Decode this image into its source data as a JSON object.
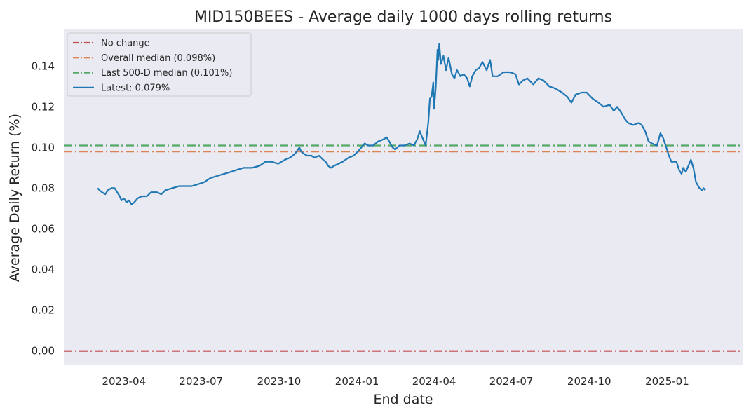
{
  "chart_data": {
    "type": "line",
    "title": "MID150BEES - Average daily 1000 days rolling returns",
    "xlabel": "End date",
    "ylabel": "Average Daily Return (%)",
    "x_ticks": [
      "2023-04",
      "2023-07",
      "2023-10",
      "2024-01",
      "2024-04",
      "2024-07",
      "2024-10",
      "2025-01"
    ],
    "y_ticks": [
      "0.00",
      "0.02",
      "0.04",
      "0.06",
      "0.08",
      "0.10",
      "0.12",
      "0.14"
    ],
    "xlim": [
      "2023-01-20",
      "2025-03-31"
    ],
    "ylim": [
      -0.007,
      0.158
    ],
    "grid": false,
    "legend_position": "top-left",
    "background": "#eaeaf2",
    "reference_lines": [
      {
        "name": "No change",
        "value": 0.0,
        "color": "#c44e52",
        "style": "dashdot"
      },
      {
        "name": "Overall median (0.098%)",
        "value": 0.098,
        "color": "#dd8452",
        "style": "dashdot"
      },
      {
        "name": "Last 500-D median (0.101%)",
        "value": 0.101,
        "color": "#55a868",
        "style": "dashdot"
      }
    ],
    "series": [
      {
        "name": "Latest: 0.079%",
        "color": "#1f77b4",
        "points": [
          [
            "2023-03-01",
            0.08
          ],
          [
            "2023-03-03",
            0.079
          ],
          [
            "2023-03-06",
            0.078
          ],
          [
            "2023-03-10",
            0.077
          ],
          [
            "2023-03-13",
            0.079
          ],
          [
            "2023-03-17",
            0.08
          ],
          [
            "2023-03-21",
            0.08
          ],
          [
            "2023-03-24",
            0.078
          ],
          [
            "2023-03-27",
            0.076
          ],
          [
            "2023-03-29",
            0.074
          ],
          [
            "2023-04-01",
            0.075
          ],
          [
            "2023-04-04",
            0.073
          ],
          [
            "2023-04-07",
            0.074
          ],
          [
            "2023-04-10",
            0.072
          ],
          [
            "2023-04-13",
            0.073
          ],
          [
            "2023-04-17",
            0.075
          ],
          [
            "2023-04-22",
            0.076
          ],
          [
            "2023-04-28",
            0.076
          ],
          [
            "2023-05-03",
            0.078
          ],
          [
            "2023-05-10",
            0.078
          ],
          [
            "2023-05-15",
            0.077
          ],
          [
            "2023-05-20",
            0.079
          ],
          [
            "2023-05-28",
            0.08
          ],
          [
            "2023-06-05",
            0.081
          ],
          [
            "2023-06-12",
            0.081
          ],
          [
            "2023-06-20",
            0.081
          ],
          [
            "2023-06-28",
            0.082
          ],
          [
            "2023-07-05",
            0.083
          ],
          [
            "2023-07-12",
            0.085
          ],
          [
            "2023-07-20",
            0.086
          ],
          [
            "2023-07-28",
            0.087
          ],
          [
            "2023-08-05",
            0.088
          ],
          [
            "2023-08-12",
            0.089
          ],
          [
            "2023-08-20",
            0.09
          ],
          [
            "2023-08-30",
            0.09
          ],
          [
            "2023-09-08",
            0.091
          ],
          [
            "2023-09-15",
            0.093
          ],
          [
            "2023-09-22",
            0.093
          ],
          [
            "2023-09-30",
            0.092
          ],
          [
            "2023-10-08",
            0.094
          ],
          [
            "2023-10-14",
            0.095
          ],
          [
            "2023-10-20",
            0.097
          ],
          [
            "2023-10-25",
            0.1
          ],
          [
            "2023-10-27",
            0.098
          ],
          [
            "2023-10-30",
            0.097
          ],
          [
            "2023-11-03",
            0.096
          ],
          [
            "2023-11-08",
            0.096
          ],
          [
            "2023-11-12",
            0.095
          ],
          [
            "2023-11-17",
            0.096
          ],
          [
            "2023-11-22",
            0.094
          ],
          [
            "2023-11-25",
            0.093
          ],
          [
            "2023-11-28",
            0.091
          ],
          [
            "2023-12-01",
            0.09
          ],
          [
            "2023-12-05",
            0.091
          ],
          [
            "2023-12-10",
            0.092
          ],
          [
            "2023-12-15",
            0.093
          ],
          [
            "2023-12-22",
            0.095
          ],
          [
            "2023-12-28",
            0.096
          ],
          [
            "2024-01-02",
            0.098
          ],
          [
            "2024-01-06",
            0.1
          ],
          [
            "2024-01-10",
            0.102
          ],
          [
            "2024-01-14",
            0.101
          ],
          [
            "2024-01-20",
            0.101
          ],
          [
            "2024-01-26",
            0.103
          ],
          [
            "2024-02-01",
            0.104
          ],
          [
            "2024-02-05",
            0.105
          ],
          [
            "2024-02-08",
            0.103
          ],
          [
            "2024-02-12",
            0.1
          ],
          [
            "2024-02-15",
            0.099
          ],
          [
            "2024-02-20",
            0.101
          ],
          [
            "2024-02-26",
            0.101
          ],
          [
            "2024-03-03",
            0.102
          ],
          [
            "2024-03-08",
            0.101
          ],
          [
            "2024-03-12",
            0.104
          ],
          [
            "2024-03-15",
            0.108
          ],
          [
            "2024-03-19",
            0.104
          ],
          [
            "2024-03-22",
            0.101
          ],
          [
            "2024-03-25",
            0.112
          ],
          [
            "2024-03-27",
            0.124
          ],
          [
            "2024-03-29",
            0.125
          ],
          [
            "2024-03-31",
            0.132
          ],
          [
            "2024-04-01",
            0.119
          ],
          [
            "2024-04-03",
            0.13
          ],
          [
            "2024-04-05",
            0.148
          ],
          [
            "2024-04-06",
            0.143
          ],
          [
            "2024-04-07",
            0.151
          ],
          [
            "2024-04-09",
            0.141
          ],
          [
            "2024-04-12",
            0.145
          ],
          [
            "2024-04-15",
            0.138
          ],
          [
            "2024-04-18",
            0.144
          ],
          [
            "2024-04-22",
            0.136
          ],
          [
            "2024-04-25",
            0.134
          ],
          [
            "2024-04-28",
            0.138
          ],
          [
            "2024-05-02",
            0.135
          ],
          [
            "2024-05-06",
            0.136
          ],
          [
            "2024-05-10",
            0.134
          ],
          [
            "2024-05-13",
            0.13
          ],
          [
            "2024-05-16",
            0.135
          ],
          [
            "2024-05-20",
            0.138
          ],
          [
            "2024-05-24",
            0.139
          ],
          [
            "2024-05-28",
            0.142
          ],
          [
            "2024-06-02",
            0.138
          ],
          [
            "2024-06-06",
            0.143
          ],
          [
            "2024-06-09",
            0.135
          ],
          [
            "2024-06-15",
            0.135
          ],
          [
            "2024-06-22",
            0.137
          ],
          [
            "2024-06-30",
            0.137
          ],
          [
            "2024-07-06",
            0.136
          ],
          [
            "2024-07-10",
            0.131
          ],
          [
            "2024-07-15",
            0.133
          ],
          [
            "2024-07-20",
            0.134
          ],
          [
            "2024-07-27",
            0.131
          ],
          [
            "2024-08-02",
            0.134
          ],
          [
            "2024-08-08",
            0.133
          ],
          [
            "2024-08-15",
            0.13
          ],
          [
            "2024-08-22",
            0.129
          ],
          [
            "2024-08-30",
            0.127
          ],
          [
            "2024-09-05",
            0.125
          ],
          [
            "2024-09-10",
            0.122
          ],
          [
            "2024-09-15",
            0.126
          ],
          [
            "2024-09-22",
            0.127
          ],
          [
            "2024-09-28",
            0.127
          ],
          [
            "2024-10-05",
            0.124
          ],
          [
            "2024-10-12",
            0.122
          ],
          [
            "2024-10-18",
            0.12
          ],
          [
            "2024-10-25",
            0.121
          ],
          [
            "2024-10-30",
            0.118
          ],
          [
            "2024-11-03",
            0.12
          ],
          [
            "2024-11-08",
            0.117
          ],
          [
            "2024-11-12",
            0.114
          ],
          [
            "2024-11-16",
            0.112
          ],
          [
            "2024-11-22",
            0.111
          ],
          [
            "2024-11-28",
            0.112
          ],
          [
            "2024-12-02",
            0.111
          ],
          [
            "2024-12-06",
            0.108
          ],
          [
            "2024-12-10",
            0.103
          ],
          [
            "2024-12-14",
            0.102
          ],
          [
            "2024-12-20",
            0.101
          ],
          [
            "2024-12-24",
            0.107
          ],
          [
            "2024-12-27",
            0.105
          ],
          [
            "2024-12-31",
            0.1
          ],
          [
            "2025-01-03",
            0.096
          ],
          [
            "2025-01-06",
            0.093
          ],
          [
            "2025-01-09",
            0.093
          ],
          [
            "2025-01-12",
            0.093
          ],
          [
            "2025-01-15",
            0.089
          ],
          [
            "2025-01-18",
            0.087
          ],
          [
            "2025-01-20",
            0.09
          ],
          [
            "2025-01-23",
            0.088
          ],
          [
            "2025-01-26",
            0.091
          ],
          [
            "2025-01-29",
            0.094
          ],
          [
            "2025-02-01",
            0.09
          ],
          [
            "2025-02-04",
            0.083
          ],
          [
            "2025-02-08",
            0.08
          ],
          [
            "2025-02-11",
            0.079
          ],
          [
            "2025-02-13",
            0.08
          ],
          [
            "2025-02-15",
            0.079
          ]
        ]
      }
    ]
  }
}
